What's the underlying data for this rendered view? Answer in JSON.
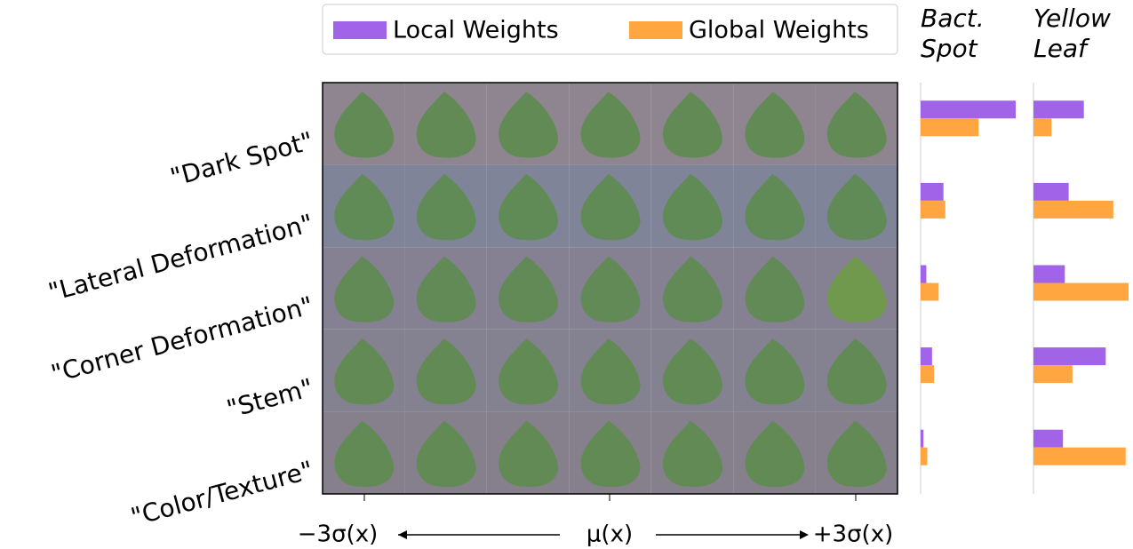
{
  "chart_data": [
    {
      "type": "barh",
      "title": "Bact. Spot",
      "categories": [
        "\"Dark Spot\"",
        "\"Lateral Deformation\"",
        "\"Corner Deformation\"",
        "\"Stem\"",
        "\"Color/Texture\""
      ],
      "series": [
        {
          "name": "Local Weights",
          "color": "#a163e8",
          "values": [
            1.0,
            0.24,
            0.06,
            0.12,
            0.03
          ]
        },
        {
          "name": "Global Weights",
          "color": "#ffa640",
          "values": [
            0.61,
            0.26,
            0.19,
            0.14,
            0.07
          ]
        }
      ],
      "xlim": [
        0,
        1
      ]
    },
    {
      "type": "barh",
      "title": "Yellow Leaf",
      "series": [
        {
          "color": "#a163e8",
          "values": [
            0.53,
            0.37,
            0.33,
            0.76,
            0.31
          ]
        },
        {
          "color": "#ffa640",
          "values": [
            0.19,
            0.84,
            1.0,
            0.41,
            0.97
          ]
        }
      ],
      "xlim": [
        0,
        1
      ]
    }
  ],
  "figure": {
    "x_axis_labels": [
      "−3σ(x)",
      "μ(x)",
      "+3σ(x)"
    ]
  }
}
